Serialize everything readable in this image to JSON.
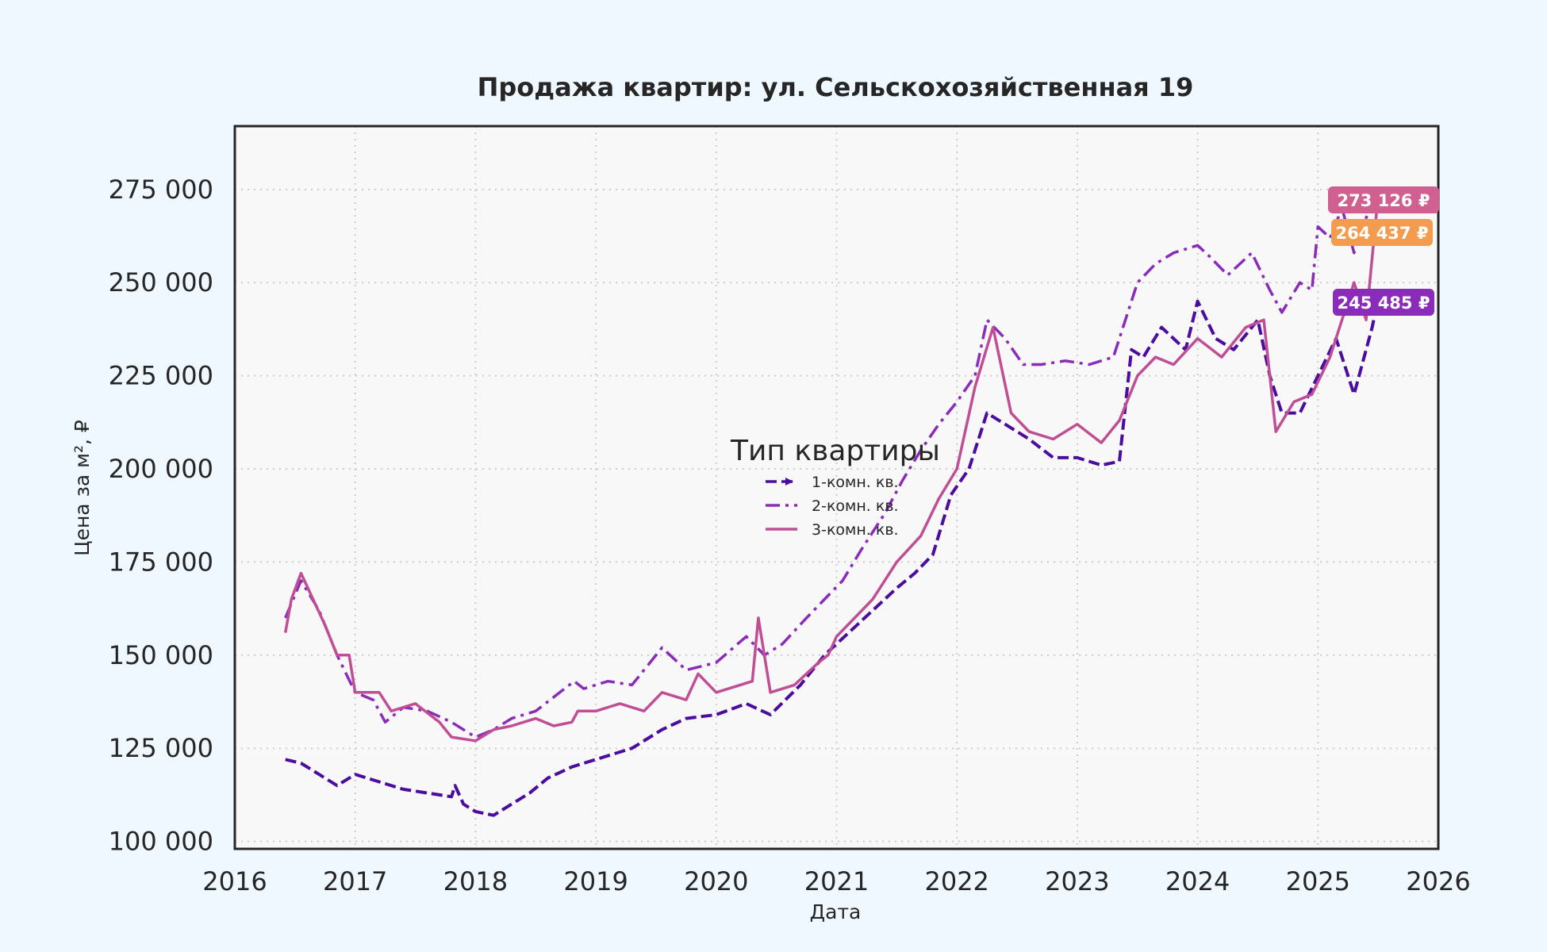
{
  "chart_data": {
    "type": "line",
    "title": "Продажа квартир: ул. Сельскохозяйственная 19",
    "xlabel": "Дата",
    "ylabel": "Цена за м², ₽",
    "xlim": [
      2016,
      2026
    ],
    "ylim": [
      98000,
      292000
    ],
    "x_ticks": [
      2016,
      2017,
      2018,
      2019,
      2020,
      2021,
      2022,
      2023,
      2024,
      2025,
      2026
    ],
    "x_tick_labels": [
      "2016",
      "2017",
      "2018",
      "2019",
      "2020",
      "2021",
      "2022",
      "2023",
      "2024",
      "2025",
      "2026"
    ],
    "y_ticks": [
      100000,
      125000,
      150000,
      175000,
      200000,
      225000,
      250000,
      275000
    ],
    "y_tick_labels": [
      "100 000",
      "125 000",
      "150 000",
      "175 000",
      "200 000",
      "225 000",
      "250 000",
      "275 000"
    ],
    "grid": true,
    "legend": {
      "title": "Тип квартиры",
      "placement": "center"
    },
    "series": [
      {
        "name": "1-комн. кв.",
        "color": "#4b0ca0",
        "style": "dashed-arrow",
        "x": [
          2016.42,
          2016.55,
          2016.7,
          2016.85,
          2017.0,
          2017.2,
          2017.4,
          2017.6,
          2017.8,
          2017.83,
          2017.9,
          2018.0,
          2018.15,
          2018.3,
          2018.45,
          2018.6,
          2018.8,
          2019.0,
          2019.3,
          2019.55,
          2019.75,
          2020.0,
          2020.25,
          2020.45,
          2020.7,
          2020.9,
          2021.1,
          2021.3,
          2021.5,
          2021.65,
          2021.8,
          2021.95,
          2022.1,
          2022.25,
          2022.4,
          2022.6,
          2022.8,
          2023.0,
          2023.2,
          2023.35,
          2023.45,
          2023.55,
          2023.7,
          2023.9,
          2024.0,
          2024.15,
          2024.3,
          2024.5,
          2024.6,
          2024.7,
          2024.85,
          2025.0,
          2025.15,
          2025.3,
          2025.45,
          2025.5
        ],
        "values": [
          122000,
          121000,
          118000,
          115000,
          118000,
          116000,
          114000,
          113000,
          112000,
          115000,
          110000,
          108000,
          107000,
          110000,
          113000,
          117000,
          120000,
          122000,
          125000,
          130000,
          133000,
          134000,
          137000,
          134000,
          142000,
          150000,
          156000,
          162000,
          168000,
          172000,
          177000,
          193000,
          200000,
          215000,
          212000,
          208000,
          203000,
          203000,
          201000,
          202000,
          232000,
          230000,
          238000,
          232000,
          245000,
          235000,
          232000,
          240000,
          225000,
          215000,
          215000,
          225000,
          235000,
          220000,
          238000,
          245485
        ]
      },
      {
        "name": "2-комн. кв.",
        "color": "#8a2bb9",
        "style": "dashdot",
        "x": [
          2016.42,
          2016.55,
          2016.7,
          2016.85,
          2017.0,
          2017.15,
          2017.25,
          2017.4,
          2017.6,
          2017.8,
          2018.0,
          2018.15,
          2018.3,
          2018.5,
          2018.7,
          2018.82,
          2018.9,
          2019.1,
          2019.3,
          2019.55,
          2019.75,
          2020.0,
          2020.25,
          2020.4,
          2020.55,
          2020.75,
          2020.9,
          2021.05,
          2021.2,
          2021.4,
          2021.55,
          2021.7,
          2021.85,
          2022.0,
          2022.15,
          2022.25,
          2022.4,
          2022.55,
          2022.7,
          2022.9,
          2023.1,
          2023.3,
          2023.4,
          2023.5,
          2023.65,
          2023.8,
          2024.0,
          2024.1,
          2024.25,
          2024.45,
          2024.6,
          2024.7,
          2024.85,
          2024.95,
          2025.0,
          2025.1,
          2025.2,
          2025.3,
          2025.45,
          2025.5
        ],
        "values": [
          160000,
          170000,
          162000,
          150000,
          140000,
          138000,
          132000,
          136000,
          135000,
          132000,
          128000,
          130000,
          133000,
          135000,
          140000,
          143000,
          141000,
          143000,
          142000,
          152000,
          146000,
          148000,
          155000,
          150000,
          153000,
          160000,
          165000,
          170000,
          178000,
          188000,
          197000,
          205000,
          212000,
          218000,
          225000,
          240000,
          235000,
          228000,
          228000,
          229000,
          228000,
          230000,
          240000,
          250000,
          255000,
          258000,
          260000,
          257000,
          252000,
          258000,
          248000,
          242000,
          250000,
          248000,
          265000,
          262000,
          270000,
          258000,
          272000,
          264437
        ]
      },
      {
        "name": "3-комн. кв.",
        "color": "#c04e95",
        "style": "solid",
        "x": [
          2016.42,
          2016.47,
          2016.55,
          2016.65,
          2016.75,
          2016.85,
          2016.95,
          2017.0,
          2017.2,
          2017.3,
          2017.5,
          2017.7,
          2017.8,
          2018.0,
          2018.15,
          2018.3,
          2018.5,
          2018.65,
          2018.8,
          2018.85,
          2019.0,
          2019.2,
          2019.4,
          2019.55,
          2019.75,
          2019.85,
          2020.0,
          2020.2,
          2020.3,
          2020.35,
          2020.45,
          2020.65,
          2020.85,
          2020.93,
          2021.0,
          2021.15,
          2021.3,
          2021.5,
          2021.7,
          2021.85,
          2022.0,
          2022.15,
          2022.3,
          2022.45,
          2022.6,
          2022.8,
          2023.0,
          2023.2,
          2023.35,
          2023.5,
          2023.65,
          2023.8,
          2024.0,
          2024.2,
          2024.4,
          2024.55,
          2024.65,
          2024.8,
          2024.95,
          2025.1,
          2025.2,
          2025.3,
          2025.4,
          2025.5
        ],
        "values": [
          156000,
          165000,
          172000,
          165000,
          158000,
          150000,
          150000,
          140000,
          140000,
          135000,
          137000,
          132000,
          128000,
          127000,
          130000,
          131000,
          133000,
          131000,
          132000,
          135000,
          135000,
          137000,
          135000,
          140000,
          138000,
          145000,
          140000,
          142000,
          143000,
          160000,
          140000,
          142000,
          148000,
          150000,
          155000,
          160000,
          165000,
          175000,
          182000,
          192000,
          200000,
          222000,
          238000,
          215000,
          210000,
          208000,
          212000,
          207000,
          213000,
          225000,
          230000,
          228000,
          235000,
          230000,
          238000,
          240000,
          210000,
          218000,
          220000,
          230000,
          240000,
          250000,
          240000,
          273126
        ]
      }
    ],
    "end_labels": [
      {
        "series": "3-комн. кв.",
        "text": "273 126 ₽",
        "value": 273126,
        "color": "#d0608f"
      },
      {
        "series": "2-комн. кв.",
        "text": "264 437 ₽",
        "value": 264437,
        "color": "#f39c50"
      },
      {
        "series": "1-комн. кв.",
        "text": "245 485 ₽",
        "value": 245485,
        "color": "#8a2bb9"
      }
    ]
  }
}
